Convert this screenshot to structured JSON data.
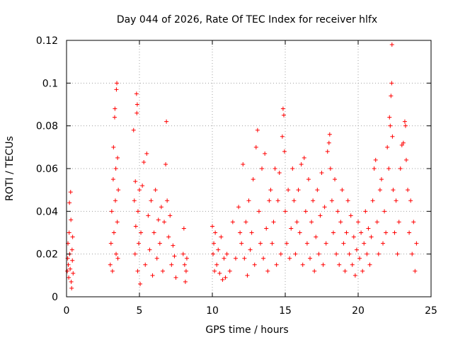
{
  "chart_data": {
    "type": "scatter",
    "title": "Day 044 of 2026, Rate Of TEC Index for receiver hlfx",
    "xlabel": "GPS time / hours",
    "ylabel": "ROTI / TECUs",
    "xlim": [
      0,
      25
    ],
    "ylim": [
      0,
      0.12
    ],
    "xticks": [
      0,
      5,
      10,
      15,
      20,
      25
    ],
    "xtick_labels": [
      "0",
      "5",
      "10",
      "15",
      "20",
      "25"
    ],
    "yticks": [
      0,
      0.02,
      0.04,
      0.06,
      0.08,
      0.1,
      0.12
    ],
    "ytick_labels": [
      "0",
      "0.02",
      "0.04",
      "0.06",
      "0.08",
      "0.1",
      "0.12"
    ],
    "grid": true,
    "marker": "+",
    "series": [
      {
        "name": "ROTI",
        "color": "#ff0000",
        "points": [
          [
            0.05,
            0.012
          ],
          [
            0.08,
            0.018
          ],
          [
            0.1,
            0.025
          ],
          [
            0.12,
            0.015
          ],
          [
            0.15,
            0.009
          ],
          [
            0.18,
            0.03
          ],
          [
            0.2,
            0.044
          ],
          [
            0.22,
            0.02
          ],
          [
            0.25,
            0.013
          ],
          [
            0.28,
            0.049
          ],
          [
            0.3,
            0.036
          ],
          [
            0.32,
            0.007
          ],
          [
            0.35,
            0.004
          ],
          [
            0.38,
            0.022
          ],
          [
            0.4,
            0.017
          ],
          [
            0.42,
            0.028
          ],
          [
            0.45,
            0.011
          ],
          [
            3.0,
            0.015
          ],
          [
            3.05,
            0.025
          ],
          [
            3.1,
            0.04
          ],
          [
            3.15,
            0.012
          ],
          [
            3.2,
            0.055
          ],
          [
            3.22,
            0.07
          ],
          [
            3.25,
            0.03
          ],
          [
            3.3,
            0.084
          ],
          [
            3.32,
            0.088
          ],
          [
            3.35,
            0.045
          ],
          [
            3.38,
            0.06
          ],
          [
            3.4,
            0.02
          ],
          [
            3.42,
            0.097
          ],
          [
            3.45,
            0.1
          ],
          [
            3.48,
            0.035
          ],
          [
            3.5,
            0.065
          ],
          [
            3.52,
            0.018
          ],
          [
            3.55,
            0.05
          ],
          [
            4.6,
            0.078
          ],
          [
            4.65,
            0.045
          ],
          [
            4.7,
            0.02
          ],
          [
            4.72,
            0.054
          ],
          [
            4.75,
            0.033
          ],
          [
            4.8,
            0.095
          ],
          [
            4.82,
            0.086
          ],
          [
            4.85,
            0.09
          ],
          [
            4.88,
            0.012
          ],
          [
            4.9,
            0.04
          ],
          [
            4.95,
            0.025
          ],
          [
            5.0,
            0.05
          ],
          [
            5.05,
            0.006
          ],
          [
            5.1,
            0.03
          ],
          [
            5.2,
            0.052
          ],
          [
            5.3,
            0.063
          ],
          [
            5.4,
            0.015
          ],
          [
            5.5,
            0.067
          ],
          [
            5.6,
            0.038
          ],
          [
            5.7,
            0.022
          ],
          [
            5.8,
            0.045
          ],
          [
            5.9,
            0.01
          ],
          [
            6.0,
            0.03
          ],
          [
            6.1,
            0.05
          ],
          [
            6.2,
            0.018
          ],
          [
            6.3,
            0.036
          ],
          [
            6.4,
            0.025
          ],
          [
            6.5,
            0.042
          ],
          [
            6.6,
            0.012
          ],
          [
            6.7,
            0.035
          ],
          [
            6.8,
            0.062
          ],
          [
            6.85,
            0.082
          ],
          [
            6.9,
            0.045
          ],
          [
            7.0,
            0.028
          ],
          [
            7.1,
            0.038
          ],
          [
            7.2,
            0.015
          ],
          [
            7.3,
            0.024
          ],
          [
            7.4,
            0.019
          ],
          [
            7.5,
            0.009
          ],
          [
            8.0,
            0.02
          ],
          [
            8.05,
            0.032
          ],
          [
            8.1,
            0.015
          ],
          [
            8.15,
            0.007
          ],
          [
            8.2,
            0.012
          ],
          [
            8.25,
            0.018
          ],
          [
            10.0,
            0.033
          ],
          [
            10.05,
            0.02
          ],
          [
            10.1,
            0.025
          ],
          [
            10.15,
            0.012
          ],
          [
            10.2,
            0.03
          ],
          [
            10.3,
            0.015
          ],
          [
            10.4,
            0.022
          ],
          [
            10.5,
            0.011
          ],
          [
            10.6,
            0.028
          ],
          [
            10.7,
            0.008
          ],
          [
            10.8,
            0.018
          ],
          [
            10.9,
            0.009
          ],
          [
            11.0,
            0.02
          ],
          [
            11.2,
            0.012
          ],
          [
            11.4,
            0.035
          ],
          [
            11.6,
            0.018
          ],
          [
            11.8,
            0.042
          ],
          [
            11.9,
            0.03
          ],
          [
            12.0,
            0.025
          ],
          [
            12.1,
            0.062
          ],
          [
            12.2,
            0.018
          ],
          [
            12.3,
            0.035
          ],
          [
            12.4,
            0.01
          ],
          [
            12.5,
            0.045
          ],
          [
            12.6,
            0.022
          ],
          [
            12.7,
            0.03
          ],
          [
            12.8,
            0.055
          ],
          [
            12.9,
            0.015
          ],
          [
            13.0,
            0.07
          ],
          [
            13.1,
            0.078
          ],
          [
            13.2,
            0.04
          ],
          [
            13.3,
            0.025
          ],
          [
            13.4,
            0.06
          ],
          [
            13.5,
            0.018
          ],
          [
            13.6,
            0.067
          ],
          [
            13.7,
            0.032
          ],
          [
            13.8,
            0.012
          ],
          [
            13.9,
            0.045
          ],
          [
            14.0,
            0.05
          ],
          [
            14.1,
            0.025
          ],
          [
            14.2,
            0.035
          ],
          [
            14.3,
            0.06
          ],
          [
            14.4,
            0.015
          ],
          [
            14.5,
            0.045
          ],
          [
            14.6,
            0.058
          ],
          [
            14.7,
            0.02
          ],
          [
            14.8,
            0.075
          ],
          [
            14.85,
            0.088
          ],
          [
            14.9,
            0.085
          ],
          [
            14.95,
            0.068
          ],
          [
            15.0,
            0.04
          ],
          [
            15.1,
            0.025
          ],
          [
            15.2,
            0.05
          ],
          [
            15.3,
            0.018
          ],
          [
            15.4,
            0.032
          ],
          [
            15.5,
            0.06
          ],
          [
            15.6,
            0.045
          ],
          [
            15.7,
            0.02
          ],
          [
            15.8,
            0.035
          ],
          [
            15.9,
            0.05
          ],
          [
            16.0,
            0.03
          ],
          [
            16.1,
            0.062
          ],
          [
            16.2,
            0.015
          ],
          [
            16.3,
            0.065
          ],
          [
            16.4,
            0.04
          ],
          [
            16.5,
            0.025
          ],
          [
            16.6,
            0.055
          ],
          [
            16.7,
            0.018
          ],
          [
            16.8,
            0.035
          ],
          [
            16.9,
            0.045
          ],
          [
            17.0,
            0.012
          ],
          [
            17.1,
            0.028
          ],
          [
            17.2,
            0.05
          ],
          [
            17.3,
            0.02
          ],
          [
            17.4,
            0.038
          ],
          [
            17.5,
            0.058
          ],
          [
            17.6,
            0.015
          ],
          [
            17.7,
            0.042
          ],
          [
            17.8,
            0.025
          ],
          [
            17.9,
            0.068
          ],
          [
            18.0,
            0.072
          ],
          [
            18.05,
            0.076
          ],
          [
            18.1,
            0.06
          ],
          [
            18.2,
            0.045
          ],
          [
            18.3,
            0.03
          ],
          [
            18.4,
            0.055
          ],
          [
            18.5,
            0.02
          ],
          [
            18.6,
            0.04
          ],
          [
            18.7,
            0.015
          ],
          [
            18.8,
            0.035
          ],
          [
            18.9,
            0.05
          ],
          [
            19.0,
            0.025
          ],
          [
            19.1,
            0.012
          ],
          [
            19.2,
            0.03
          ],
          [
            19.3,
            0.045
          ],
          [
            19.4,
            0.02
          ],
          [
            19.5,
            0.038
          ],
          [
            19.6,
            0.015
          ],
          [
            19.7,
            0.028
          ],
          [
            19.8,
            0.01
          ],
          [
            19.9,
            0.022
          ],
          [
            20.0,
            0.035
          ],
          [
            20.1,
            0.018
          ],
          [
            20.2,
            0.03
          ],
          [
            20.3,
            0.012
          ],
          [
            20.4,
            0.025
          ],
          [
            20.5,
            0.04
          ],
          [
            20.6,
            0.02
          ],
          [
            20.7,
            0.032
          ],
          [
            20.8,
            0.015
          ],
          [
            20.9,
            0.028
          ],
          [
            21.0,
            0.045
          ],
          [
            21.1,
            0.06
          ],
          [
            21.2,
            0.064
          ],
          [
            21.3,
            0.035
          ],
          [
            21.4,
            0.02
          ],
          [
            21.5,
            0.05
          ],
          [
            21.6,
            0.055
          ],
          [
            21.7,
            0.025
          ],
          [
            21.8,
            0.04
          ],
          [
            21.9,
            0.03
          ],
          [
            22.0,
            0.07
          ],
          [
            22.1,
            0.06
          ],
          [
            22.15,
            0.084
          ],
          [
            22.2,
            0.08
          ],
          [
            22.25,
            0.094
          ],
          [
            22.3,
            0.1
          ],
          [
            22.32,
            0.118
          ],
          [
            22.35,
            0.075
          ],
          [
            22.4,
            0.05
          ],
          [
            22.5,
            0.03
          ],
          [
            22.6,
            0.045
          ],
          [
            22.7,
            0.02
          ],
          [
            22.8,
            0.035
          ],
          [
            22.9,
            0.06
          ],
          [
            23.0,
            0.071
          ],
          [
            23.1,
            0.072
          ],
          [
            23.2,
            0.082
          ],
          [
            23.25,
            0.08
          ],
          [
            23.3,
            0.064
          ],
          [
            23.4,
            0.05
          ],
          [
            23.5,
            0.03
          ],
          [
            23.6,
            0.045
          ],
          [
            23.7,
            0.02
          ],
          [
            23.8,
            0.035
          ],
          [
            23.9,
            0.012
          ],
          [
            24.0,
            0.025
          ]
        ]
      }
    ]
  }
}
